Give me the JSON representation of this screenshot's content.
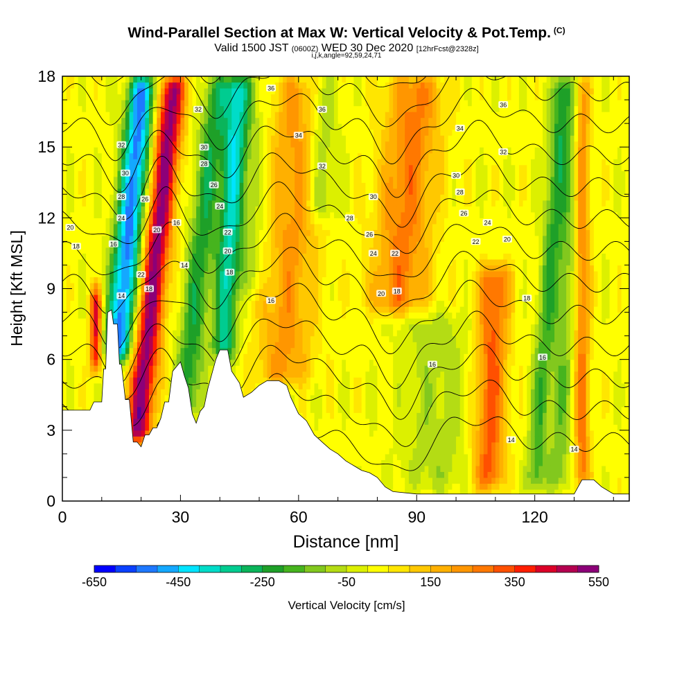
{
  "title": {
    "main": "Wind-Parallel Section at Max W: Vertical Velocity & Pot.Temp.",
    "units_tag": "(C)",
    "valid_prefix": "Valid 1500 JST",
    "valid_utc": "(0600Z)",
    "valid_date": "WED 30 Dec 2020",
    "forecast": "[12hrFcst@2328z]",
    "ijk": "i,j,k,angle=92,59,24,71"
  },
  "chart_data": {
    "type": "heatmap",
    "xlabel": "Distance [nm]",
    "ylabel": "Height [Kft MSL]",
    "xlim": [
      0,
      144
    ],
    "ylim": [
      0,
      18
    ],
    "x_ticks": [
      0,
      30,
      60,
      90,
      120
    ],
    "y_ticks": [
      0,
      3,
      6,
      9,
      12,
      15,
      18
    ],
    "grid": false,
    "fill_variable": "Vertical Velocity [cm/s]",
    "contour_variable": "Potential Temperature (C)",
    "colorbar": {
      "label": "Vertical Velocity [cm/s]",
      "min": -650,
      "max": 550,
      "step": 50,
      "tick_labels": [
        "-650",
        "-450",
        "-250",
        "-50",
        "150",
        "350",
        "550"
      ],
      "colors": [
        "#0000ff",
        "#0a40ff",
        "#1e78ff",
        "#14a8ff",
        "#00e4ff",
        "#00dcc8",
        "#00cc90",
        "#0ab45a",
        "#1ea028",
        "#46b41e",
        "#82c81e",
        "#b4dc14",
        "#dcf000",
        "#ffff00",
        "#ffe600",
        "#ffc800",
        "#ffb000",
        "#ff9600",
        "#ff7800",
        "#ff5000",
        "#ff1e00",
        "#dc0028",
        "#b40050",
        "#8c0078",
        "#5a0096"
      ]
    },
    "terrain": [
      [
        0,
        3.85
      ],
      [
        7,
        3.85
      ],
      [
        8,
        4.2
      ],
      [
        10,
        4.2
      ],
      [
        10.5,
        5.6
      ],
      [
        11,
        5.6
      ],
      [
        11.5,
        8
      ],
      [
        12.5,
        8.1
      ],
      [
        13,
        7.5
      ],
      [
        14,
        7.5
      ],
      [
        14.5,
        5.8
      ],
      [
        15,
        5.8
      ],
      [
        16,
        4.3
      ],
      [
        17,
        4.3
      ],
      [
        18,
        2.5
      ],
      [
        19,
        2.5
      ],
      [
        20,
        2.3
      ],
      [
        21,
        2.8
      ],
      [
        22,
        2.8
      ],
      [
        23,
        3.1
      ],
      [
        24,
        3.1
      ],
      [
        25,
        3.5
      ],
      [
        26,
        4.2
      ],
      [
        27,
        4.2
      ],
      [
        28,
        5.5
      ],
      [
        30,
        5.9
      ],
      [
        31,
        5.3
      ],
      [
        32,
        4.8
      ],
      [
        33,
        3.7
      ],
      [
        34,
        3.3
      ],
      [
        35,
        3.8
      ],
      [
        36,
        4
      ],
      [
        37,
        4.8
      ],
      [
        39,
        6
      ],
      [
        40,
        6.4
      ],
      [
        42,
        6.4
      ],
      [
        43,
        5.5
      ],
      [
        45,
        5
      ],
      [
        46,
        4.4
      ],
      [
        48,
        4.6
      ],
      [
        50,
        4.9
      ],
      [
        52,
        5.1
      ],
      [
        55,
        5.1
      ],
      [
        57,
        4.9
      ],
      [
        58,
        4.4
      ],
      [
        60,
        3.7
      ],
      [
        62,
        3.4
      ],
      [
        64,
        2.8
      ],
      [
        66,
        2.5
      ],
      [
        68,
        2.2
      ],
      [
        70,
        2
      ],
      [
        72,
        1.7
      ],
      [
        74,
        1.5
      ],
      [
        76,
        1.3
      ],
      [
        78,
        1.2
      ],
      [
        80,
        1
      ],
      [
        82,
        0.6
      ],
      [
        84,
        0.4
      ],
      [
        90,
        0.3
      ],
      [
        100,
        0.3
      ],
      [
        105,
        0.3
      ],
      [
        130,
        0.3
      ],
      [
        132,
        0.9
      ],
      [
        135,
        0.9
      ],
      [
        137,
        0.6
      ],
      [
        140,
        0.3
      ],
      [
        144,
        0.3
      ]
    ],
    "w_field": [
      {
        "center_x": 8.5,
        "half_width": 1.5,
        "z_min": 5.5,
        "z_max": 9,
        "tilt": 0,
        "w": 400
      },
      {
        "center_x": 14,
        "half_width": 3.5,
        "z_min": 6,
        "z_max": 18,
        "tilt": 0.55,
        "w": -550
      },
      {
        "center_x": 19,
        "half_width": 3.5,
        "z_min": 2.5,
        "z_max": 18,
        "tilt": 0.6,
        "w": 500
      },
      {
        "center_x": 31,
        "half_width": 3.5,
        "z_min": 3.5,
        "z_max": 18,
        "tilt": 0.6,
        "w": -250
      },
      {
        "center_x": 41,
        "half_width": 3,
        "z_min": 6,
        "z_max": 18,
        "tilt": 0.3,
        "w": -350
      },
      {
        "center_x": 48,
        "half_width": 5,
        "z_min": 9,
        "z_max": 18,
        "tilt": 0,
        "w": -100
      },
      {
        "center_x": 56,
        "half_width": 7,
        "z_min": 5,
        "z_max": 18,
        "tilt": 0.3,
        "w": 200
      },
      {
        "center_x": 66,
        "half_width": 4,
        "z_min": 12,
        "z_max": 18,
        "tilt": 0,
        "w": -150
      },
      {
        "center_x": 85,
        "half_width": 7,
        "z_min": 8,
        "z_max": 18,
        "tilt": 0.5,
        "w": 250
      },
      {
        "center_x": 95,
        "half_width": 9,
        "z_min": 0.5,
        "z_max": 8,
        "tilt": 0,
        "w": -100
      },
      {
        "center_x": 108,
        "half_width": 4,
        "z_min": 0.5,
        "z_max": 10,
        "tilt": 0.2,
        "w": 300
      },
      {
        "center_x": 120,
        "half_width": 2.5,
        "z_min": 0.5,
        "z_max": 18,
        "tilt": 0.4,
        "w": -200
      },
      {
        "center_x": 126,
        "half_width": 3,
        "z_min": 0.5,
        "z_max": 18,
        "tilt": 0.2,
        "w": -150
      },
      {
        "center_x": 132,
        "half_width": 2,
        "z_min": 0.5,
        "z_max": 18,
        "tilt": 0,
        "w": 250
      }
    ],
    "contour_levels": [
      14,
      16,
      18,
      20,
      22,
      24,
      26,
      28,
      30,
      32,
      34,
      36
    ],
    "contour_labels": [
      {
        "text": "20",
        "x": 2,
        "z": 11.6
      },
      {
        "text": "18",
        "x": 3.5,
        "z": 10.8
      },
      {
        "text": "32",
        "x": 15,
        "z": 15.1
      },
      {
        "text": "30",
        "x": 16,
        "z": 13.9
      },
      {
        "text": "28",
        "x": 15,
        "z": 12.9
      },
      {
        "text": "24",
        "x": 15,
        "z": 12.0
      },
      {
        "text": "16",
        "x": 13,
        "z": 10.9
      },
      {
        "text": "14",
        "x": 15,
        "z": 8.7
      },
      {
        "text": "26",
        "x": 21,
        "z": 12.8
      },
      {
        "text": "20",
        "x": 24,
        "z": 11.5
      },
      {
        "text": "22",
        "x": 20,
        "z": 9.6
      },
      {
        "text": "18",
        "x": 22,
        "z": 9.0
      },
      {
        "text": "16",
        "x": 29,
        "z": 11.8
      },
      {
        "text": "14",
        "x": 31,
        "z": 10.0
      },
      {
        "text": "32",
        "x": 34.5,
        "z": 16.6
      },
      {
        "text": "30",
        "x": 36,
        "z": 15.0
      },
      {
        "text": "28",
        "x": 36,
        "z": 14.3
      },
      {
        "text": "26",
        "x": 38.5,
        "z": 13.4
      },
      {
        "text": "24",
        "x": 40,
        "z": 12.5
      },
      {
        "text": "22",
        "x": 42,
        "z": 11.4
      },
      {
        "text": "20",
        "x": 42,
        "z": 10.6
      },
      {
        "text": "18",
        "x": 42.5,
        "z": 9.7
      },
      {
        "text": "16",
        "x": 53,
        "z": 8.5
      },
      {
        "text": "36",
        "x": 53,
        "z": 17.5
      },
      {
        "text": "36",
        "x": 66,
        "z": 16.6
      },
      {
        "text": "34",
        "x": 60,
        "z": 15.5
      },
      {
        "text": "32",
        "x": 66,
        "z": 14.2
      },
      {
        "text": "30",
        "x": 79,
        "z": 12.9
      },
      {
        "text": "28",
        "x": 73,
        "z": 12.0
      },
      {
        "text": "26",
        "x": 78,
        "z": 11.3
      },
      {
        "text": "24",
        "x": 79,
        "z": 10.5
      },
      {
        "text": "22",
        "x": 84.5,
        "z": 10.5
      },
      {
        "text": "20",
        "x": 81,
        "z": 8.8
      },
      {
        "text": "18",
        "x": 85,
        "z": 8.9
      },
      {
        "text": "16",
        "x": 94,
        "z": 5.8
      },
      {
        "text": "36",
        "x": 112,
        "z": 16.8
      },
      {
        "text": "34",
        "x": 101,
        "z": 15.8
      },
      {
        "text": "32",
        "x": 112,
        "z": 14.8
      },
      {
        "text": "30",
        "x": 100,
        "z": 13.8
      },
      {
        "text": "28",
        "x": 101,
        "z": 13.1
      },
      {
        "text": "26",
        "x": 102,
        "z": 12.2
      },
      {
        "text": "24",
        "x": 108,
        "z": 11.8
      },
      {
        "text": "22",
        "x": 105,
        "z": 11.0
      },
      {
        "text": "20",
        "x": 113,
        "z": 11.1
      },
      {
        "text": "18",
        "x": 118,
        "z": 8.6
      },
      {
        "text": "16",
        "x": 122,
        "z": 6.1
      },
      {
        "text": "14",
        "x": 114,
        "z": 2.6
      },
      {
        "text": "14",
        "x": 130,
        "z": 2.2
      }
    ]
  }
}
